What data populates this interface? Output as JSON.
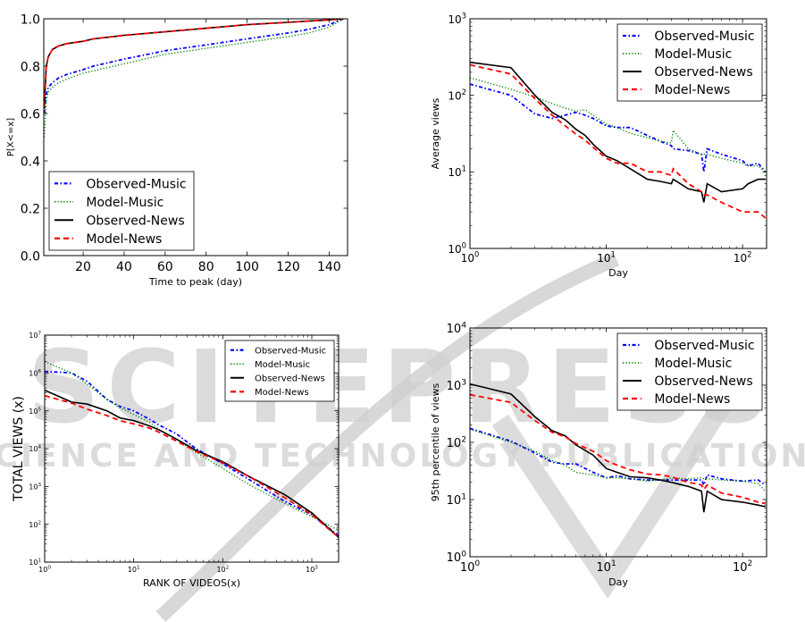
{
  "watermark": {
    "logo": "SCITEPRESS",
    "subtitle": "SCIENCE AND TECHNOLOGY PUBLICATIONS"
  },
  "series_styles": [
    {
      "name": "Observed-Music",
      "color": "#0000ff",
      "style": "dashdot"
    },
    {
      "name": "Model-Music",
      "color": "#008000",
      "style": "dotted"
    },
    {
      "name": "Observed-News",
      "color": "#000000",
      "style": "solid"
    },
    {
      "name": "Model-News",
      "color": "#ff0000",
      "style": "dashed"
    }
  ],
  "chart_data": [
    {
      "type": "line",
      "title": "",
      "xlabel": "Time to peak (day)",
      "ylabel": "P[X<=x]",
      "xscale": "linear",
      "yscale": "linear",
      "xlim": [
        0.8,
        149
      ],
      "ylim": [
        0,
        1
      ],
      "xticks": [
        20,
        40,
        60,
        80,
        100,
        120,
        140
      ],
      "yticks": [
        0.0,
        0.2,
        0.4,
        0.6,
        0.8,
        1.0
      ],
      "ytick_labels": [
        "0.0",
        "0.2",
        "0.4",
        "0.6",
        "0.8",
        "1.0"
      ],
      "legend": "lower-left",
      "x": [
        1,
        2,
        3,
        5,
        8,
        12,
        20,
        25,
        40,
        60,
        80,
        100,
        120,
        130,
        140,
        147
      ],
      "series": [
        {
          "name": "Observed-Music",
          "values": [
            0.6,
            0.68,
            0.71,
            0.73,
            0.75,
            0.765,
            0.785,
            0.8,
            0.83,
            0.865,
            0.89,
            0.915,
            0.94,
            0.955,
            0.975,
            1.0
          ]
        },
        {
          "name": "Model-Music",
          "values": [
            0.5,
            0.66,
            0.69,
            0.71,
            0.73,
            0.745,
            0.77,
            0.78,
            0.81,
            0.85,
            0.875,
            0.9,
            0.925,
            0.94,
            0.965,
            1.0
          ]
        },
        {
          "name": "Observed-News",
          "values": [
            0.62,
            0.8,
            0.84,
            0.87,
            0.885,
            0.895,
            0.905,
            0.915,
            0.93,
            0.945,
            0.96,
            0.975,
            0.985,
            0.99,
            0.995,
            1.0
          ]
        },
        {
          "name": "Model-News",
          "values": [
            0.63,
            0.8,
            0.84,
            0.87,
            0.885,
            0.895,
            0.905,
            0.915,
            0.93,
            0.945,
            0.96,
            0.975,
            0.985,
            0.99,
            0.995,
            1.0
          ]
        }
      ]
    },
    {
      "type": "line",
      "title": "",
      "xlabel": "Day",
      "ylabel": "Average views",
      "xscale": "log",
      "yscale": "log",
      "xlim": [
        1,
        150
      ],
      "ylim": [
        1,
        1000
      ],
      "xticks": [
        1,
        10,
        100
      ],
      "yticks": [
        1,
        10,
        100,
        1000
      ],
      "legend": "upper-right",
      "x": [
        1,
        2,
        3,
        4,
        5,
        6,
        7,
        8,
        10,
        12,
        15,
        20,
        25,
        30,
        31,
        40,
        50,
        52,
        55,
        70,
        100,
        110,
        130,
        147
      ],
      "series": [
        {
          "name": "Observed-Music",
          "values": [
            140,
            100,
            57,
            50,
            55,
            60,
            55,
            50,
            40,
            38,
            38,
            30,
            25,
            22,
            20,
            19,
            17,
            10,
            20,
            17,
            14,
            12,
            13,
            10
          ]
        },
        {
          "name": "Model-Music",
          "values": [
            170,
            120,
            95,
            78,
            68,
            62,
            65,
            55,
            42,
            38,
            32,
            28,
            25,
            24,
            35,
            20,
            17,
            17,
            17,
            15,
            13,
            12,
            12,
            10
          ]
        },
        {
          "name": "Observed-News",
          "values": [
            270,
            230,
            100,
            60,
            48,
            36,
            30,
            23,
            16,
            14,
            11,
            8,
            7.5,
            7,
            8,
            6,
            5.5,
            4,
            7,
            5.5,
            6,
            7,
            8,
            8
          ]
        },
        {
          "name": "Model-News",
          "values": [
            250,
            190,
            90,
            55,
            40,
            31,
            26,
            21,
            15,
            13,
            13,
            10,
            10,
            9,
            11,
            7,
            5.5,
            5,
            5,
            4,
            3,
            3,
            3,
            2.5
          ]
        }
      ]
    },
    {
      "type": "line",
      "title": "",
      "xlabel": "RANK OF VIDEOS(x)",
      "ylabel": "TOTAL VIEWS (x)",
      "xscale": "log",
      "yscale": "log",
      "xlim": [
        1,
        2000
      ],
      "ylim": [
        10,
        10000000
      ],
      "xticks": [
        1,
        10,
        100,
        1000
      ],
      "yticks": [
        10,
        100,
        1000,
        10000,
        100000,
        1000000,
        10000000
      ],
      "legend": "upper-right",
      "x": [
        1,
        2,
        3,
        5,
        7,
        10,
        15,
        20,
        30,
        50,
        100,
        200,
        500,
        1000,
        2000
      ],
      "series": [
        {
          "name": "Observed-Music",
          "values": [
            1100000,
            1000000,
            600000,
            200000,
            130000,
            100000,
            60000,
            40000,
            25000,
            10000,
            4000,
            1500,
            400,
            180,
            50
          ]
        },
        {
          "name": "Model-Music",
          "values": [
            2000000,
            1000000,
            500000,
            200000,
            120000,
            80000,
            50000,
            30000,
            18000,
            8000,
            3000,
            1100,
            350,
            160,
            70
          ]
        },
        {
          "name": "Observed-News",
          "values": [
            350000,
            170000,
            150000,
            100000,
            65000,
            55000,
            40000,
            30000,
            18000,
            9000,
            4500,
            1800,
            600,
            200,
            45
          ]
        },
        {
          "name": "Model-News",
          "values": [
            250000,
            160000,
            110000,
            75000,
            55000,
            45000,
            35000,
            26000,
            16000,
            8500,
            4200,
            1800,
            500,
            180,
            45
          ]
        }
      ]
    },
    {
      "type": "line",
      "title": "",
      "xlabel": "Day",
      "ylabel": "95th percentile of views",
      "xscale": "log",
      "yscale": "log",
      "xlim": [
        1,
        150
      ],
      "ylim": [
        1,
        10000
      ],
      "xticks": [
        1,
        10,
        100
      ],
      "yticks": [
        1,
        10,
        100,
        1000,
        10000
      ],
      "legend": "upper-right",
      "x": [
        1,
        2,
        3,
        4,
        5,
        6,
        8,
        10,
        12,
        15,
        20,
        25,
        30,
        40,
        50,
        52,
        55,
        70,
        100,
        130,
        147
      ],
      "series": [
        {
          "name": "Observed-Music",
          "values": [
            175,
            105,
            65,
            45,
            42,
            42,
            30,
            24,
            26,
            23,
            22,
            22,
            22,
            22,
            22,
            18,
            27,
            23,
            21,
            22,
            18
          ]
        },
        {
          "name": "Model-Music",
          "values": [
            170,
            100,
            70,
            48,
            40,
            30,
            27,
            24,
            24,
            23,
            21,
            22,
            24,
            23,
            24,
            23,
            23,
            22,
            21,
            19,
            14
          ]
        },
        {
          "name": "Observed-News",
          "values": [
            1050,
            700,
            280,
            160,
            130,
            90,
            60,
            35,
            30,
            25,
            24,
            22,
            20,
            17,
            14,
            6,
            14,
            10,
            9,
            8,
            7.5
          ]
        },
        {
          "name": "Model-News",
          "values": [
            680,
            500,
            240,
            150,
            125,
            95,
            70,
            48,
            40,
            33,
            28,
            27,
            25,
            20,
            18,
            15,
            18,
            13,
            11,
            9,
            8.5
          ]
        }
      ]
    }
  ]
}
